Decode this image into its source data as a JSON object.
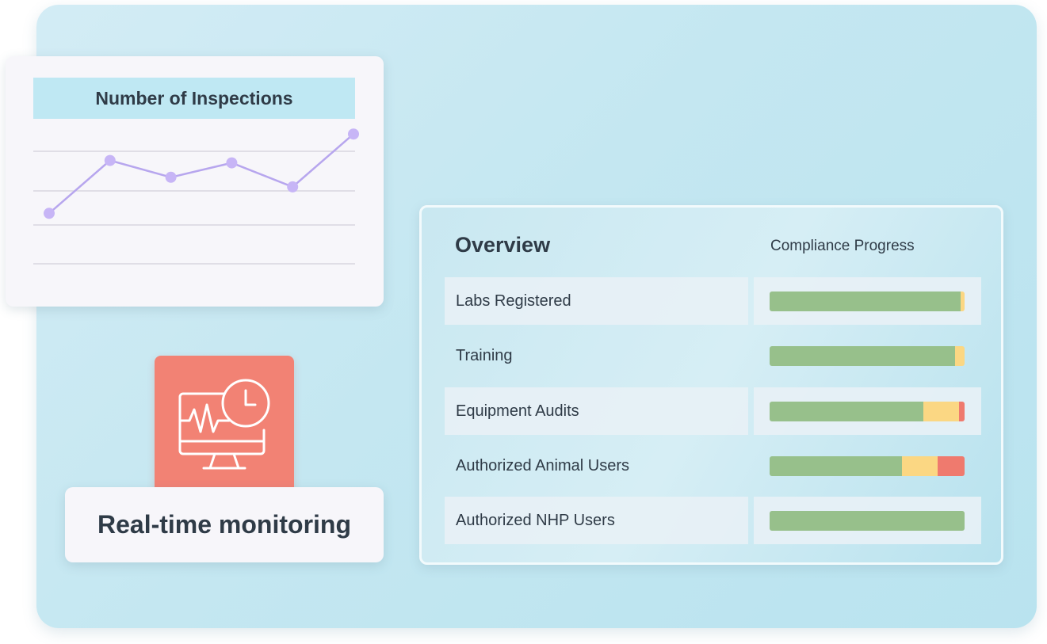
{
  "chart": {
    "title": "Number of Inspections",
    "line_color": "#b7a6ee",
    "point_color": "#c7b5f6",
    "grid_color": "#d9d6df"
  },
  "chart_data": {
    "type": "line",
    "title": "Number of Inspections",
    "x": [
      1,
      2,
      3,
      4,
      5,
      6
    ],
    "values": [
      2.1,
      4.3,
      3.6,
      4.2,
      3.2,
      5.4
    ],
    "ylim": [
      0,
      6
    ],
    "grid": true
  },
  "monitor": {
    "icon": "monitor-clock-icon",
    "label": "Real-time monitoring"
  },
  "overview": {
    "title": "Overview",
    "subtitle": "Compliance Progress",
    "colors": {
      "green": "#97c08b",
      "yellow": "#fbd783",
      "red": "#ef7a6e"
    },
    "rows": [
      {
        "label": "Labs Registered",
        "green": 0.98,
        "yellow": 0.02,
        "red": 0.0
      },
      {
        "label": "Training",
        "green": 0.95,
        "yellow": 0.05,
        "red": 0.0
      },
      {
        "label": "Equipment Audits",
        "green": 0.79,
        "yellow": 0.18,
        "red": 0.03
      },
      {
        "label": "Authorized Animal Users",
        "green": 0.68,
        "yellow": 0.18,
        "red": 0.14
      },
      {
        "label": "Authorized NHP Users",
        "green": 1.0,
        "yellow": 0.0,
        "red": 0.0
      }
    ]
  }
}
